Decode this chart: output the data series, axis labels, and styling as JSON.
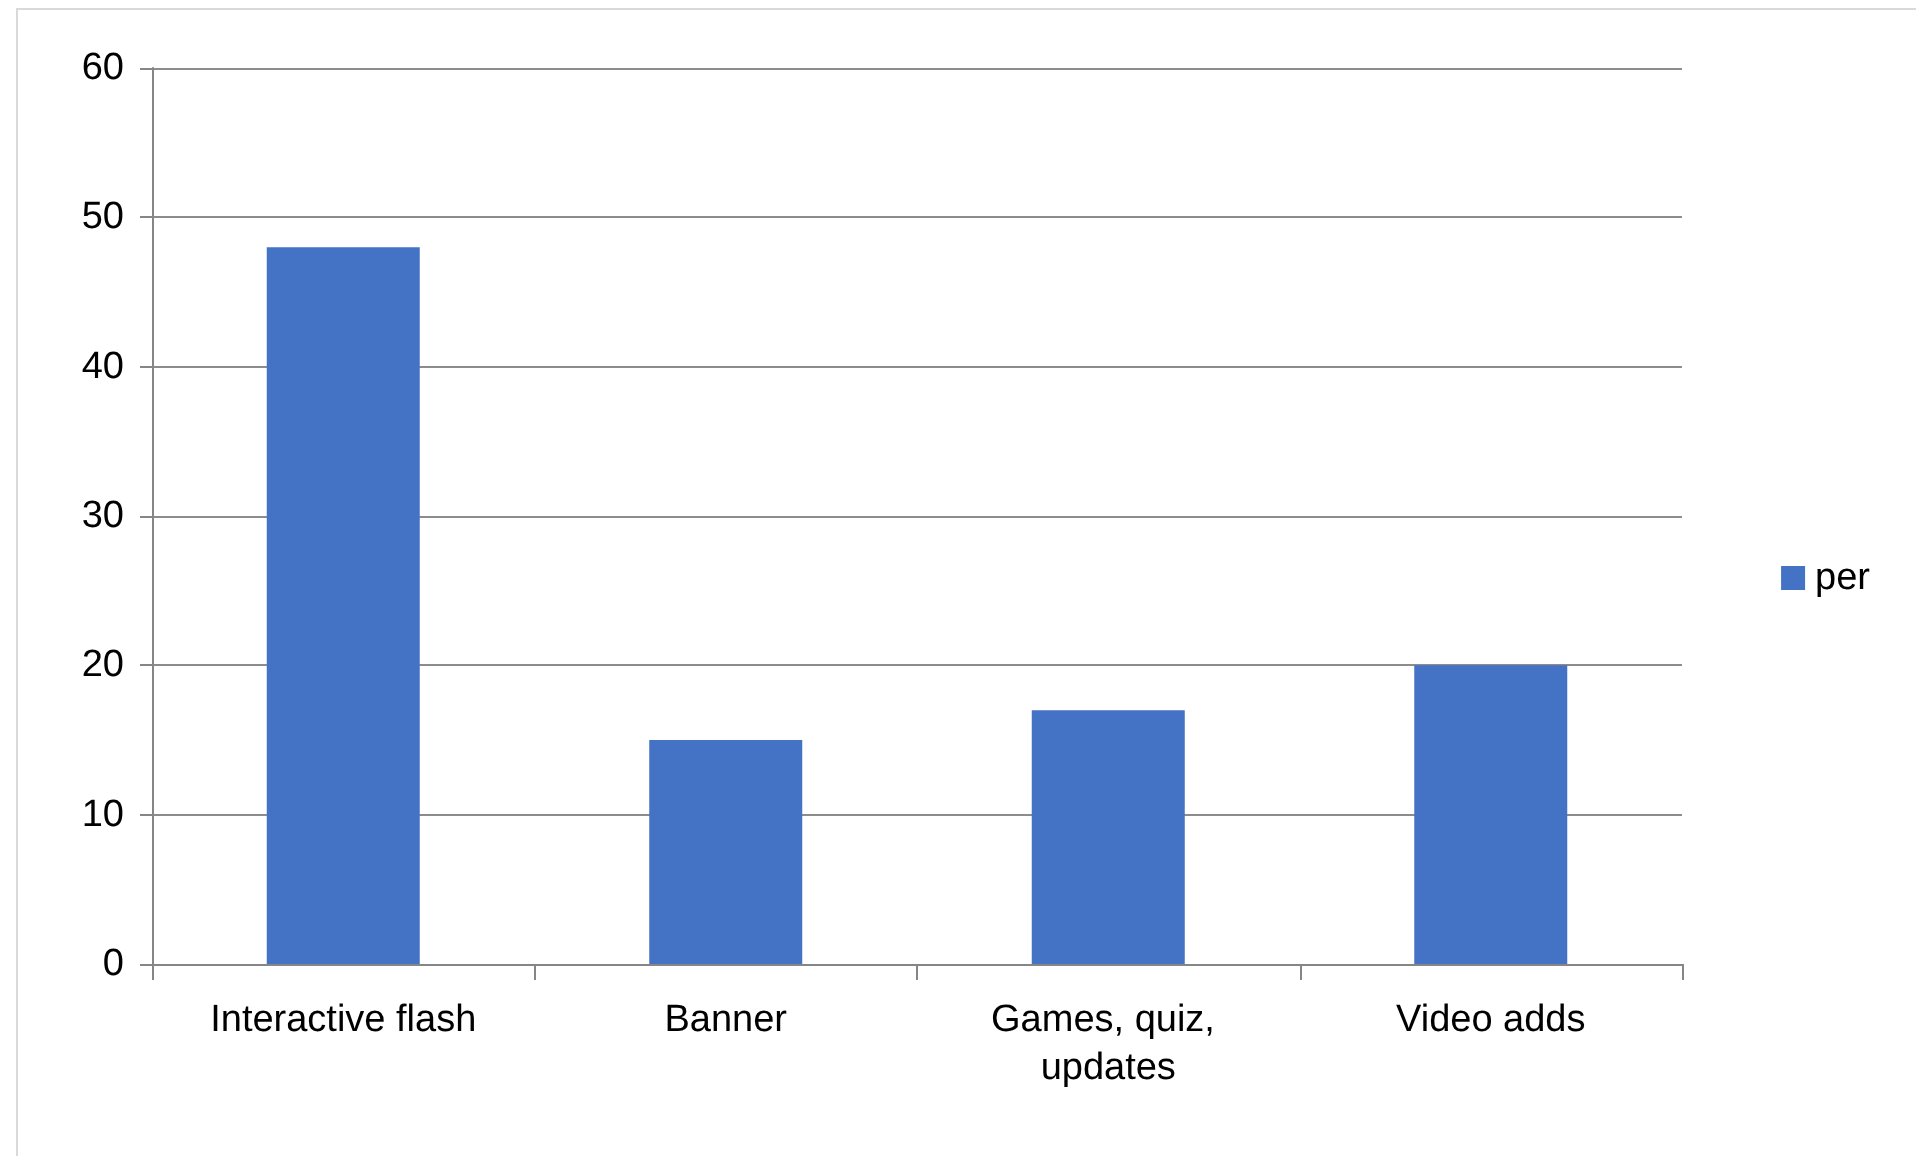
{
  "chart_data": {
    "type": "bar",
    "categories": [
      "Interactive flash",
      "Banner",
      "Games, quiz, updates",
      "Video adds"
    ],
    "series": [
      {
        "name": "per",
        "color": "#4472c4",
        "values": [
          48,
          15,
          17,
          20
        ]
      }
    ],
    "ylim": [
      0,
      60
    ],
    "yticks": [
      0,
      10,
      20,
      30,
      40,
      50,
      60
    ],
    "grid": "y",
    "legend": "right"
  }
}
